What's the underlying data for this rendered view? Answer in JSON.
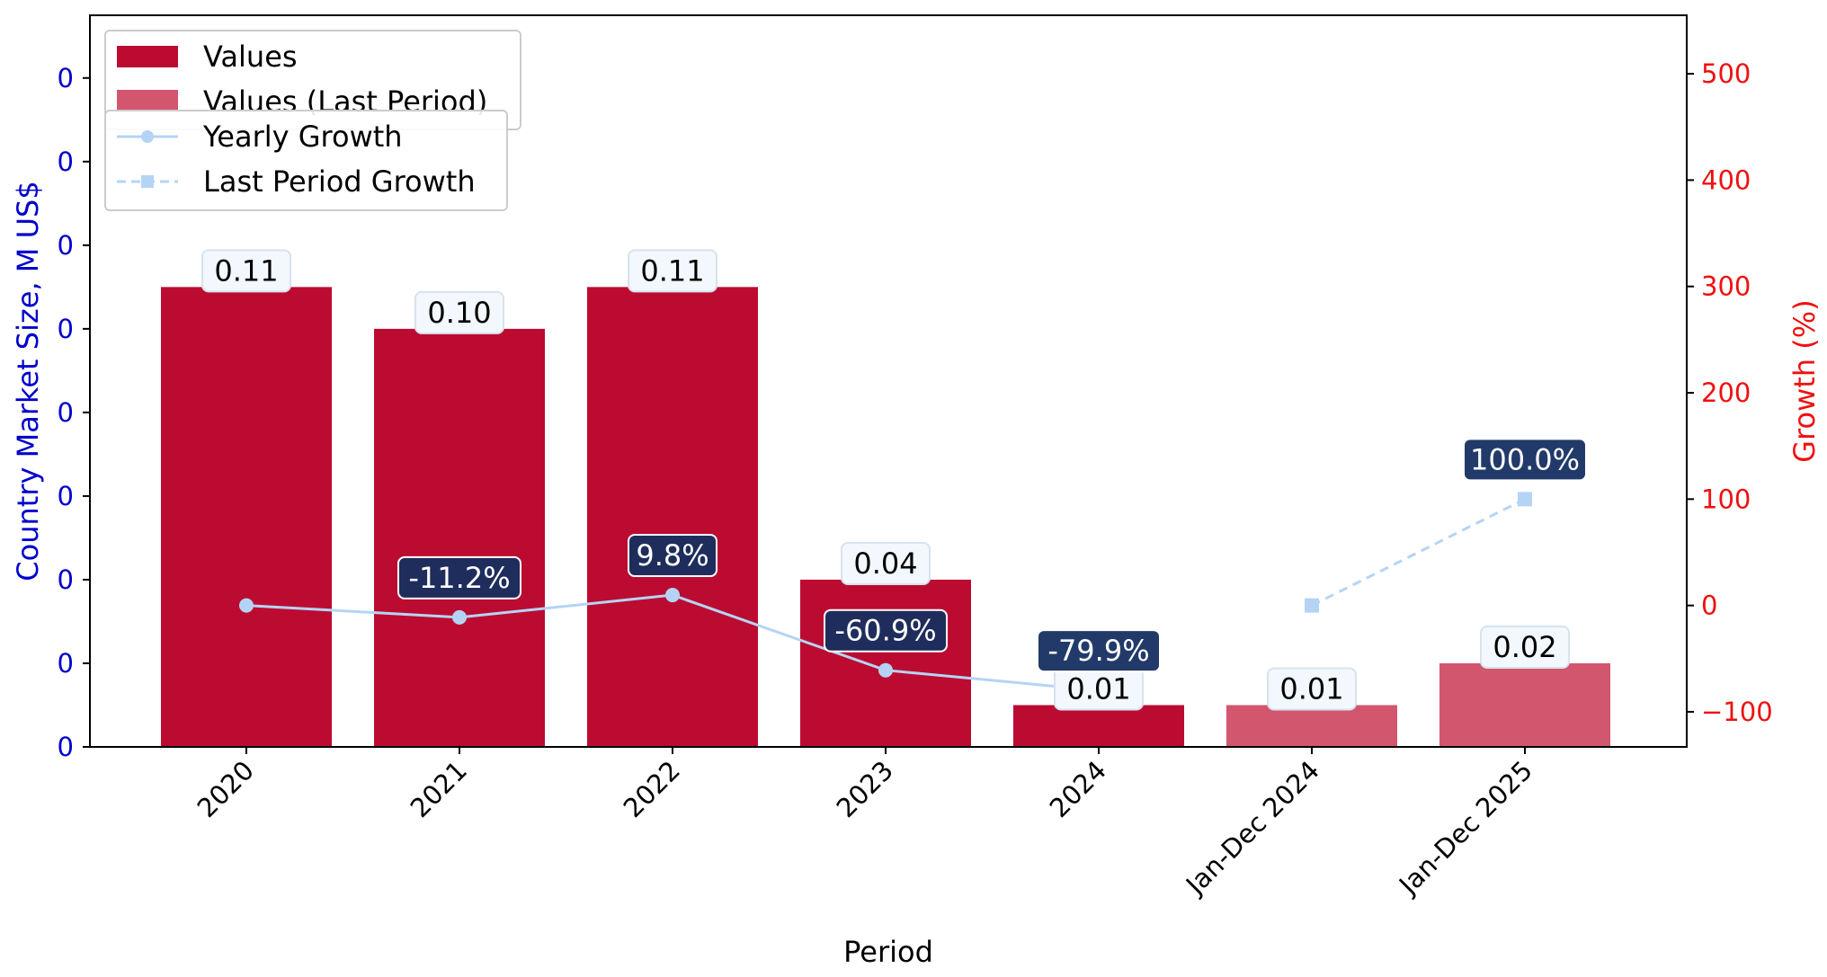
{
  "chart_data": {
    "type": "bar",
    "categories": [
      "2020",
      "2021",
      "2022",
      "2023",
      "2024",
      "Jan-Dec 2024",
      "Jan-Dec 2025"
    ],
    "values": [
      0.11,
      0.1,
      0.11,
      0.04,
      0.01,
      0.01,
      0.02
    ],
    "value_labels": [
      "0.11",
      "0.10",
      "0.11",
      "0.04",
      "0.01",
      "0.01",
      "0.02"
    ],
    "bar_kinds": [
      "values",
      "values",
      "values",
      "values",
      "values",
      "last",
      "last"
    ],
    "series": [
      {
        "name": "Values",
        "color": "#bc0b31"
      },
      {
        "name": "Values (Last Period)",
        "color": "#d2566d"
      },
      {
        "name": "Yearly Growth",
        "color": "#b5d4f5",
        "x": [
          "2020",
          "2021",
          "2022",
          "2023",
          "2024"
        ],
        "values": [
          0,
          -11.2,
          9.8,
          -60.9,
          -79.9
        ],
        "labels": [
          "",
          "-11.2%",
          "9.8%",
          "-60.9%",
          "-79.9%"
        ]
      },
      {
        "name": "Last Period Growth",
        "color": "#b5d4f5",
        "x": [
          "Jan-Dec 2024",
          "Jan-Dec 2025"
        ],
        "values": [
          0,
          100.0
        ],
        "labels": [
          "",
          "100.0%"
        ]
      }
    ],
    "xlabel": "Period",
    "ylabel": "Country Market Size, M US$",
    "y2label": "Growth (%)",
    "ylim": [
      0,
      0.175
    ],
    "y_ticks": [
      0,
      0.02,
      0.04,
      0.06,
      0.08,
      0.1,
      0.12,
      0.14,
      0.16
    ],
    "y_tick_labels": [
      "0",
      "0",
      "0",
      "0",
      "0",
      "0",
      "0",
      "0",
      "0"
    ],
    "y2lim": [
      -133,
      555
    ],
    "y2_ticks": [
      -100,
      0,
      100,
      200,
      300,
      400,
      500
    ],
    "y2_tick_labels": [
      "−100",
      "0",
      "100",
      "200",
      "300",
      "400",
      "500"
    ],
    "grid": false,
    "legend_placement": "top-left",
    "colors": {
      "left_axis": "#0000cc",
      "right_axis": "#ee1111",
      "growth_label_bg_dark": "#1f2d5c",
      "growth_label_bg_navy": "#223a6a",
      "value_label_bg": "#f2f8fd"
    }
  }
}
